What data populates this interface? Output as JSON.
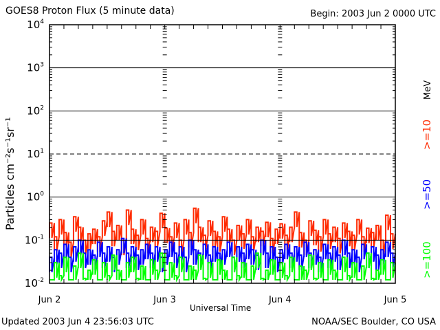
{
  "chart_data": {
    "type": "line",
    "title": "GOES8 Proton Flux (5 minute data)",
    "begin_label": "Begin: 2003 Jun 2 0000 UTC",
    "xlabel": "Universal Time",
    "ylabel": "Particles cm⁻²s⁻¹sr⁻¹",
    "yscale": "log",
    "ylim": [
      0.01,
      10000
    ],
    "y_ticks": [
      {
        "base": "10",
        "exp": "4"
      },
      {
        "base": "10",
        "exp": "3"
      },
      {
        "base": "10",
        "exp": "2"
      },
      {
        "base": "10",
        "exp": "1"
      },
      {
        "base": "10",
        "exp": "0"
      },
      {
        "base": "10",
        "exp": "-1"
      },
      {
        "base": "10",
        "exp": "-2"
      }
    ],
    "x_ticks": [
      "Jun 2",
      "Jun 3",
      "Jun 4",
      "Jun 5"
    ],
    "xlim_hours": [
      0,
      72
    ],
    "unit_label": "MeV",
    "series": [
      {
        "name": ">=10",
        "color": "#ff2a00",
        "values": [
          0.25,
          0.12,
          0.3,
          0.15,
          0.09,
          0.35,
          0.2,
          0.1,
          0.14,
          0.18,
          0.12,
          0.28,
          0.45,
          0.16,
          0.22,
          0.1,
          0.5,
          0.18,
          0.13,
          0.3,
          0.11,
          0.2,
          0.16,
          0.42,
          0.19,
          0.12,
          0.25,
          0.1,
          0.3,
          0.15,
          0.55,
          0.2,
          0.13,
          0.28,
          0.16,
          0.12,
          0.35,
          0.18,
          0.1,
          0.22,
          0.14,
          0.3,
          0.12,
          0.2,
          0.16,
          0.26,
          0.11,
          0.18,
          0.24,
          0.13,
          0.2,
          0.45,
          0.15,
          0.1,
          0.28,
          0.17,
          0.12,
          0.3,
          0.14,
          0.2,
          0.11,
          0.25,
          0.16,
          0.13,
          0.3,
          0.12,
          0.19,
          0.15,
          0.22,
          0.1,
          0.38,
          0.14
        ]
      },
      {
        "name": ">=50",
        "color": "#0000ff",
        "values": [
          0.04,
          0.06,
          0.05,
          0.08,
          0.04,
          0.07,
          0.1,
          0.05,
          0.06,
          0.045,
          0.09,
          0.05,
          0.07,
          0.04,
          0.06,
          0.11,
          0.05,
          0.07,
          0.045,
          0.06,
          0.08,
          0.05,
          0.07,
          0.04,
          0.06,
          0.09,
          0.05,
          0.07,
          0.04,
          0.1,
          0.06,
          0.05,
          0.08,
          0.045,
          0.07,
          0.05,
          0.06,
          0.09,
          0.04,
          0.07,
          0.05,
          0.08,
          0.06,
          0.045,
          0.1,
          0.05,
          0.07,
          0.04,
          0.06,
          0.08,
          0.05,
          0.07,
          0.045,
          0.09,
          0.05,
          0.06,
          0.04,
          0.08,
          0.05,
          0.07,
          0.045,
          0.1,
          0.05,
          0.06,
          0.04,
          0.08,
          0.05,
          0.07,
          0.045,
          0.06,
          0.09,
          0.05
        ]
      },
      {
        "name": ">=100",
        "color": "#00ff00",
        "values": [
          0.012,
          0.03,
          0.015,
          0.04,
          0.012,
          0.025,
          0.05,
          0.013,
          0.02,
          0.035,
          0.012,
          0.03,
          0.015,
          0.045,
          0.02,
          0.012,
          0.03,
          0.04,
          0.013,
          0.025,
          0.012,
          0.035,
          0.02,
          0.05,
          0.012,
          0.03,
          0.015,
          0.04,
          0.012,
          0.025,
          0.02,
          0.045,
          0.013,
          0.03,
          0.012,
          0.035,
          0.02,
          0.012,
          0.04,
          0.015,
          0.03,
          0.012,
          0.025,
          0.05,
          0.013,
          0.02,
          0.035,
          0.012,
          0.03,
          0.015,
          0.04,
          0.012,
          0.025,
          0.02,
          0.045,
          0.013,
          0.03,
          0.012,
          0.035,
          0.02,
          0.012,
          0.04,
          0.015,
          0.03,
          0.012,
          0.025,
          0.05,
          0.013,
          0.02,
          0.035,
          0.012,
          0.03
        ]
      }
    ]
  },
  "footer": {
    "updated": "Updated 2003 Jun  4 23:56:03 UTC",
    "source": "NOAA/SEC Boulder, CO USA"
  }
}
